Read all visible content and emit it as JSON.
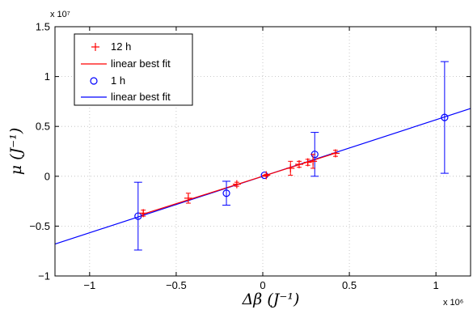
{
  "chart_data": {
    "type": "scatter",
    "xlabel": "Δβ (J⁻¹)",
    "ylabel": "μ (J⁻¹)",
    "x_multiplier": "x 10⁶",
    "y_multiplier": "x 10⁷",
    "xlim": [
      -1.2,
      1.2
    ],
    "ylim": [
      -1.0,
      1.5
    ],
    "xticks": [
      -1,
      -0.5,
      0,
      0.5,
      1
    ],
    "yticks": [
      -1,
      -0.5,
      0,
      0.5,
      1,
      1.5
    ],
    "xtick_labels": [
      "−1",
      "−0.5",
      "0",
      "0.5",
      "1"
    ],
    "ytick_labels": [
      "−1",
      "−0.5",
      "0",
      "0.5",
      "1",
      "1.5"
    ],
    "grid": true,
    "legend_position": "top-left",
    "series": [
      {
        "name": "12 h",
        "marker": "plus",
        "color": "#ff0000",
        "points": [
          {
            "x": -0.69,
            "y": -0.37,
            "err": 0.03
          },
          {
            "x": -0.43,
            "y": -0.22,
            "err": 0.05
          },
          {
            "x": -0.15,
            "y": -0.08,
            "err": 0.02
          },
          {
            "x": 0.02,
            "y": 0.01,
            "err": 0.01
          },
          {
            "x": 0.16,
            "y": 0.08,
            "err": 0.07
          },
          {
            "x": 0.21,
            "y": 0.12,
            "err": 0.03
          },
          {
            "x": 0.26,
            "y": 0.14,
            "err": 0.03
          },
          {
            "x": 0.29,
            "y": 0.15,
            "err": 0.07
          },
          {
            "x": 0.42,
            "y": 0.23,
            "err": 0.03
          }
        ]
      },
      {
        "name": "linear best fit",
        "kind": "line",
        "color": "#ff0000",
        "x": [
          -0.7,
          0.43
        ],
        "y": [
          -0.385,
          0.237
        ]
      },
      {
        "name": "1 h",
        "marker": "circle",
        "color": "#0000ff",
        "points": [
          {
            "x": -0.72,
            "y": -0.4,
            "err": 0.34
          },
          {
            "x": -0.21,
            "y": -0.17,
            "err": 0.12
          },
          {
            "x": 0.01,
            "y": 0.01,
            "err": 0.0
          },
          {
            "x": 0.3,
            "y": 0.22,
            "err": 0.22
          },
          {
            "x": 1.05,
            "y": 0.59,
            "err": 0.56
          }
        ]
      },
      {
        "name": "linear best fit",
        "kind": "line",
        "color": "#0000ff",
        "x": [
          -1.2,
          1.2
        ],
        "y": [
          -0.68,
          0.68
        ]
      }
    ]
  }
}
